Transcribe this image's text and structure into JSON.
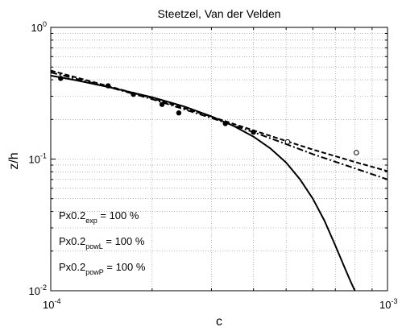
{
  "chart_data": {
    "type": "line",
    "title": "Steetzel, Van der Velden",
    "xlabel": "c",
    "ylabel": "z/h",
    "xscale": "log",
    "yscale": "log",
    "xlim": [
      0.0001,
      0.001
    ],
    "ylim": [
      0.01,
      1
    ],
    "grid": true,
    "x_ticks": [
      {
        "base": "10",
        "exp": "-4"
      },
      {
        "base": "10",
        "exp": "-3"
      }
    ],
    "y_ticks": [
      {
        "base": "10",
        "exp": "0"
      },
      {
        "base": "10",
        "exp": "-1"
      },
      {
        "base": "10",
        "exp": "-2"
      }
    ],
    "annotations": [
      {
        "main": "Px0.2",
        "sub": "exp",
        "rest": " = 100 %"
      },
      {
        "main": "Px0.2",
        "sub": "powL",
        "rest": " = 100 %"
      },
      {
        "main": "Px0.2",
        "sub": "powP",
        "rest": " = 100 %"
      }
    ],
    "series": [
      {
        "style": "solid",
        "color": "#000000",
        "x": [
          0.0001,
          0.00012,
          0.00015,
          0.0002,
          0.00025,
          0.0003,
          0.00035,
          0.0004,
          0.00045,
          0.0005,
          0.00055,
          0.0006,
          0.00065,
          0.0007,
          0.00075,
          0.00078,
          0.0008
        ],
        "y": [
          0.43,
          0.395,
          0.35,
          0.295,
          0.25,
          0.211,
          0.178,
          0.148,
          0.12,
          0.094,
          0.07,
          0.05,
          0.034,
          0.022,
          0.0145,
          0.0115,
          0.01
        ]
      },
      {
        "style": "dashed",
        "color": "#000000",
        "x": [
          0.0001,
          0.00015,
          0.0002,
          0.0003,
          0.0004,
          0.0005,
          0.0006,
          0.0008,
          0.001
        ],
        "y": [
          0.47,
          0.355,
          0.29,
          0.21,
          0.165,
          0.137,
          0.118,
          0.095,
          0.081
        ]
      },
      {
        "style": "dash-dot",
        "color": "#000000",
        "x": [
          0.0001,
          0.00015,
          0.0002,
          0.0003,
          0.0004,
          0.0005,
          0.0006,
          0.0008,
          0.001
        ],
        "y": [
          0.455,
          0.35,
          0.285,
          0.205,
          0.16,
          0.13,
          0.109,
          0.085,
          0.07
        ]
      },
      {
        "style": "markers-filled",
        "color": "#000000",
        "x": [
          0.000107,
          0.000148,
          0.000176,
          0.000214,
          0.00024,
          0.00033,
          0.0004
        ],
        "y": [
          0.41,
          0.36,
          0.31,
          0.26,
          0.224,
          0.186,
          0.16
        ]
      },
      {
        "style": "markers-open",
        "color": "#000000",
        "x": [
          0.000505,
          0.000808
        ],
        "y": [
          0.135,
          0.112
        ]
      }
    ]
  }
}
